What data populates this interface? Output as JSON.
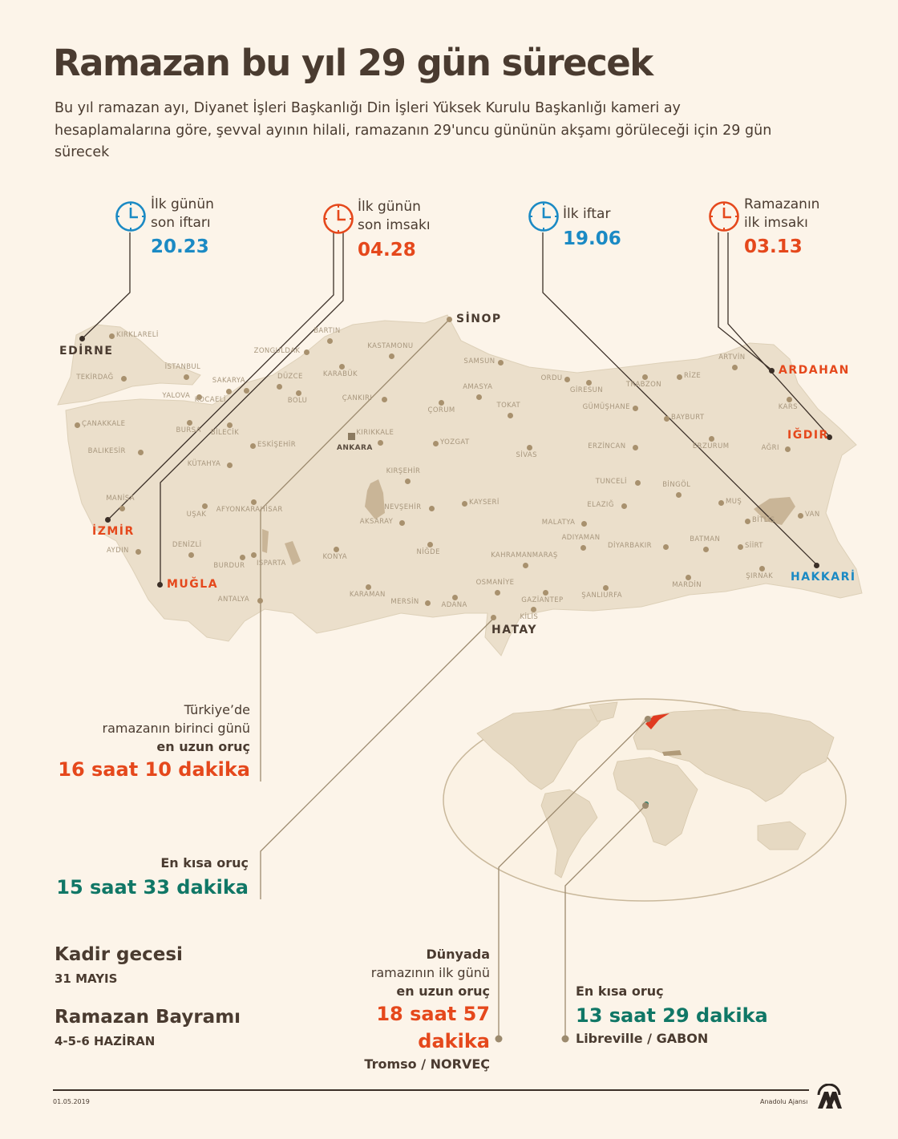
{
  "header": {
    "title": "Ramazan bu yıl 29 gün sürecek",
    "intro": "Bu yıl ramazan ayı, Diyanet İşleri Başkanlığı Din İşleri Yüksek Kurulu Başkanlığı kameri ay hesaplamalarına göre, şevval ayının hilali, ramazanın 29'uncu gününün akşamı görüleceği için 29 gün sürecek"
  },
  "colors": {
    "background": "#fcf4e9",
    "map_land": "#ebdfcb",
    "blue": "#1b8ac4",
    "red": "#e5481c",
    "teal": "#107766",
    "dark": "#4a3b30"
  },
  "clocks": [
    {
      "icon": "clock-icon",
      "color": "blue",
      "label1": "İlk günün",
      "label2": "son iftarı",
      "value": "20.23"
    },
    {
      "icon": "clock-icon",
      "color": "red",
      "label1": "İlk günün",
      "label2": "son imsakı",
      "value": "04.28"
    },
    {
      "icon": "clock-icon",
      "color": "blue",
      "label1": "İlk iftar",
      "label2": "",
      "value": "19.06"
    },
    {
      "icon": "clock-icon",
      "color": "red",
      "label1": "Ramazanın",
      "label2": "ilk imsakı",
      "value": "03.13"
    }
  ],
  "map": {
    "highlighted": {
      "edirne": "EDİRNE",
      "sinop": "SİNOP",
      "izmir": "İZMİR",
      "mugla": "MUĞLA",
      "ardahan": "ARDAHAN",
      "igdir": "IĞDIR",
      "hakkari": "HAKKARİ",
      "hatay": "HATAY"
    },
    "capital": "ANKARA",
    "cities": [
      "KIRKLARELİ",
      "TEKİRDAĞ",
      "İSTANBUL",
      "YALOVA",
      "KOCAELİ",
      "SAKARYA",
      "DÜZCE",
      "BOLU",
      "ZONGULDAK",
      "BARTIN",
      "KASTAMONU",
      "KARABÜK",
      "ÇANKIRI",
      "ÇORUM",
      "BURSA",
      "BİLECİK",
      "ÇANAKKALE",
      "BALIKESİR",
      "ESKİŞEHİR",
      "KIRIKKALE",
      "YOZGAT",
      "KÜTAHYA",
      "KIRŞEHİR",
      "MANİSA",
      "UŞAK",
      "AFYONKARAHİSAR",
      "NEVŞEHİR",
      "AKSARAY",
      "AYDIN",
      "DENİZLİ",
      "BURDUR",
      "ISPARTA",
      "KONYA",
      "NİĞDE",
      "KARAMAN",
      "MERSİN",
      "ADANA",
      "ANTALYA",
      "SAMSUN",
      "ORDU",
      "GİRESUN",
      "TRABZON",
      "RİZE",
      "ARTVİN",
      "AMASYA",
      "TOKAT",
      "GÜMÜŞHANE",
      "BAYBURT",
      "KARS",
      "SİVAS",
      "ERZİNCAN",
      "ERZURUM",
      "AĞRI",
      "TUNCELİ",
      "BİNGÖL",
      "ELAZIĞ",
      "MUŞ",
      "BİTLİS",
      "VAN",
      "KAYSERİ",
      "MALATYA",
      "ADIYAMAN",
      "DİYARBAKIR",
      "BATMAN",
      "SİİRT",
      "ŞIRNAK",
      "MARDİN",
      "KAHRAMANMARAŞ",
      "OSMANİYE",
      "GAZİANTEP",
      "KİLİS",
      "ŞANLIURFA"
    ]
  },
  "turkey": {
    "longest": {
      "line1": "Türkiye’de",
      "line2": "ramazanın birinci günü",
      "line3": "en uzun oruç",
      "value": "16 saat 10 dakika"
    },
    "shortest": {
      "line1": "En kısa oruç",
      "value": "15 saat 33 dakika"
    }
  },
  "dates": {
    "kadir_title": "Kadir gecesi",
    "kadir_date": "31 MAYIS",
    "bayram_title": "Ramazan Bayramı",
    "bayram_date": "4-5-6 HAZİRAN"
  },
  "world": {
    "longest": {
      "line1": "Dünyada",
      "line2": "ramazının ilk günü",
      "line3": "en uzun oruç",
      "value": "18 saat 57 dakika",
      "place": "Tromso / NORVEÇ"
    },
    "shortest": {
      "line1": "En kısa oruç",
      "value": "13 saat 29 dakika",
      "place": "Libreville / GABON"
    }
  },
  "footer": {
    "date": "01.05.2019",
    "agency": "Anadolu Ajansı",
    "logo_text": "AA"
  }
}
